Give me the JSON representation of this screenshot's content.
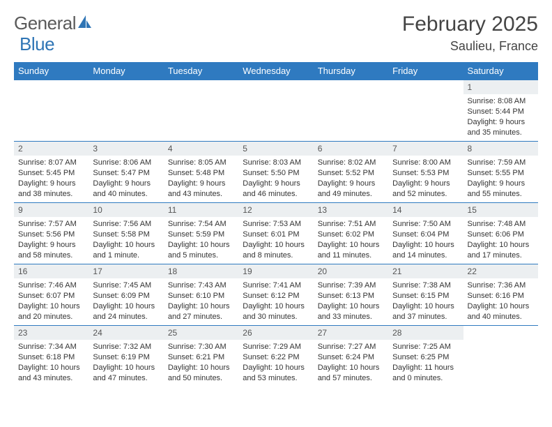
{
  "logo": {
    "word1": "General",
    "word2": "Blue"
  },
  "title": "February 2025",
  "location": "Saulieu, France",
  "header_bg": "#2f7ac0",
  "header_fg": "#ffffff",
  "daynum_bg": "#eceff1",
  "border_color": "#2f7ac0",
  "text_color": "#333333",
  "font_family": "Arial, Helvetica, sans-serif",
  "day_headers": [
    "Sunday",
    "Monday",
    "Tuesday",
    "Wednesday",
    "Thursday",
    "Friday",
    "Saturday"
  ],
  "weeks": [
    [
      null,
      null,
      null,
      null,
      null,
      null,
      {
        "n": "1",
        "sunrise": "8:08 AM",
        "sunset": "5:44 PM",
        "daylight": "9 hours and 35 minutes."
      }
    ],
    [
      {
        "n": "2",
        "sunrise": "8:07 AM",
        "sunset": "5:45 PM",
        "daylight": "9 hours and 38 minutes."
      },
      {
        "n": "3",
        "sunrise": "8:06 AM",
        "sunset": "5:47 PM",
        "daylight": "9 hours and 40 minutes."
      },
      {
        "n": "4",
        "sunrise": "8:05 AM",
        "sunset": "5:48 PM",
        "daylight": "9 hours and 43 minutes."
      },
      {
        "n": "5",
        "sunrise": "8:03 AM",
        "sunset": "5:50 PM",
        "daylight": "9 hours and 46 minutes."
      },
      {
        "n": "6",
        "sunrise": "8:02 AM",
        "sunset": "5:52 PM",
        "daylight": "9 hours and 49 minutes."
      },
      {
        "n": "7",
        "sunrise": "8:00 AM",
        "sunset": "5:53 PM",
        "daylight": "9 hours and 52 minutes."
      },
      {
        "n": "8",
        "sunrise": "7:59 AM",
        "sunset": "5:55 PM",
        "daylight": "9 hours and 55 minutes."
      }
    ],
    [
      {
        "n": "9",
        "sunrise": "7:57 AM",
        "sunset": "5:56 PM",
        "daylight": "9 hours and 58 minutes."
      },
      {
        "n": "10",
        "sunrise": "7:56 AM",
        "sunset": "5:58 PM",
        "daylight": "10 hours and 1 minute."
      },
      {
        "n": "11",
        "sunrise": "7:54 AM",
        "sunset": "5:59 PM",
        "daylight": "10 hours and 5 minutes."
      },
      {
        "n": "12",
        "sunrise": "7:53 AM",
        "sunset": "6:01 PM",
        "daylight": "10 hours and 8 minutes."
      },
      {
        "n": "13",
        "sunrise": "7:51 AM",
        "sunset": "6:02 PM",
        "daylight": "10 hours and 11 minutes."
      },
      {
        "n": "14",
        "sunrise": "7:50 AM",
        "sunset": "6:04 PM",
        "daylight": "10 hours and 14 minutes."
      },
      {
        "n": "15",
        "sunrise": "7:48 AM",
        "sunset": "6:06 PM",
        "daylight": "10 hours and 17 minutes."
      }
    ],
    [
      {
        "n": "16",
        "sunrise": "7:46 AM",
        "sunset": "6:07 PM",
        "daylight": "10 hours and 20 minutes."
      },
      {
        "n": "17",
        "sunrise": "7:45 AM",
        "sunset": "6:09 PM",
        "daylight": "10 hours and 24 minutes."
      },
      {
        "n": "18",
        "sunrise": "7:43 AM",
        "sunset": "6:10 PM",
        "daylight": "10 hours and 27 minutes."
      },
      {
        "n": "19",
        "sunrise": "7:41 AM",
        "sunset": "6:12 PM",
        "daylight": "10 hours and 30 minutes."
      },
      {
        "n": "20",
        "sunrise": "7:39 AM",
        "sunset": "6:13 PM",
        "daylight": "10 hours and 33 minutes."
      },
      {
        "n": "21",
        "sunrise": "7:38 AM",
        "sunset": "6:15 PM",
        "daylight": "10 hours and 37 minutes."
      },
      {
        "n": "22",
        "sunrise": "7:36 AM",
        "sunset": "6:16 PM",
        "daylight": "10 hours and 40 minutes."
      }
    ],
    [
      {
        "n": "23",
        "sunrise": "7:34 AM",
        "sunset": "6:18 PM",
        "daylight": "10 hours and 43 minutes."
      },
      {
        "n": "24",
        "sunrise": "7:32 AM",
        "sunset": "6:19 PM",
        "daylight": "10 hours and 47 minutes."
      },
      {
        "n": "25",
        "sunrise": "7:30 AM",
        "sunset": "6:21 PM",
        "daylight": "10 hours and 50 minutes."
      },
      {
        "n": "26",
        "sunrise": "7:29 AM",
        "sunset": "6:22 PM",
        "daylight": "10 hours and 53 minutes."
      },
      {
        "n": "27",
        "sunrise": "7:27 AM",
        "sunset": "6:24 PM",
        "daylight": "10 hours and 57 minutes."
      },
      {
        "n": "28",
        "sunrise": "7:25 AM",
        "sunset": "6:25 PM",
        "daylight": "11 hours and 0 minutes."
      },
      null
    ]
  ],
  "labels": {
    "sunrise": "Sunrise:",
    "sunset": "Sunset:",
    "daylight": "Daylight:"
  }
}
